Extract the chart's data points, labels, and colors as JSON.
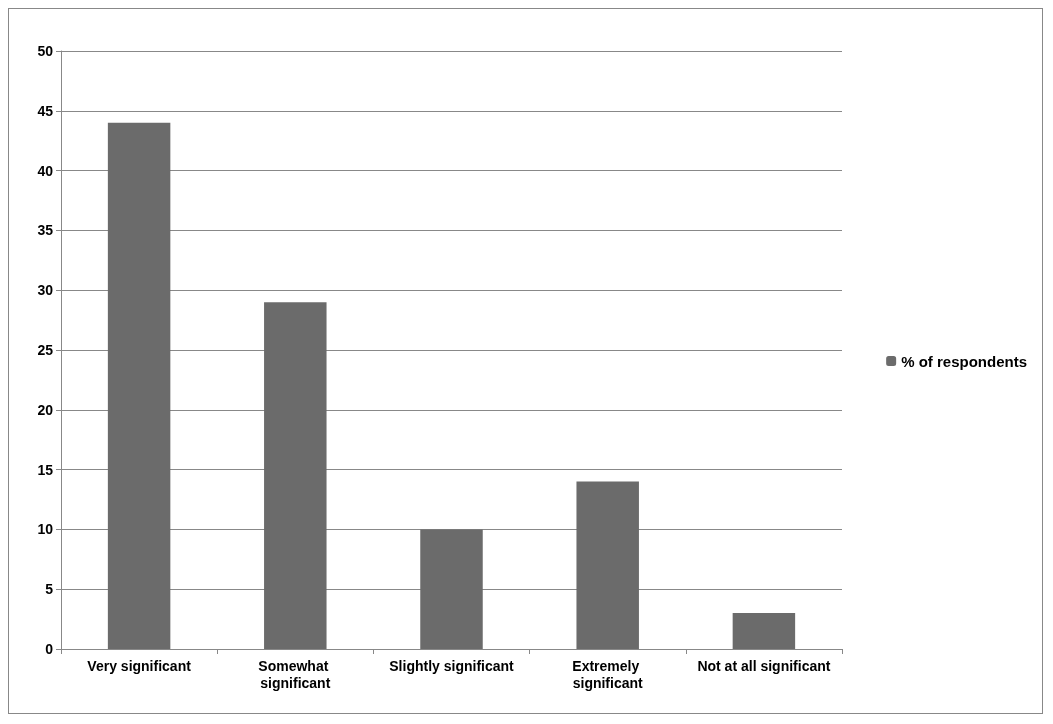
{
  "chart_data": {
    "type": "bar",
    "categories": [
      "Very significant",
      "Somewhat significant",
      "Slightly significant",
      "Extremely significant",
      "Not at all significant"
    ],
    "series": [
      {
        "name": "% of respondents",
        "color": "#6b6b6b",
        "values": [
          44,
          29,
          10,
          14,
          3
        ]
      }
    ],
    "ylim": [
      0,
      50
    ],
    "yticks": [
      0,
      5,
      10,
      15,
      20,
      25,
      30,
      35,
      40,
      45,
      50
    ],
    "grid": "y",
    "legend": "right"
  }
}
